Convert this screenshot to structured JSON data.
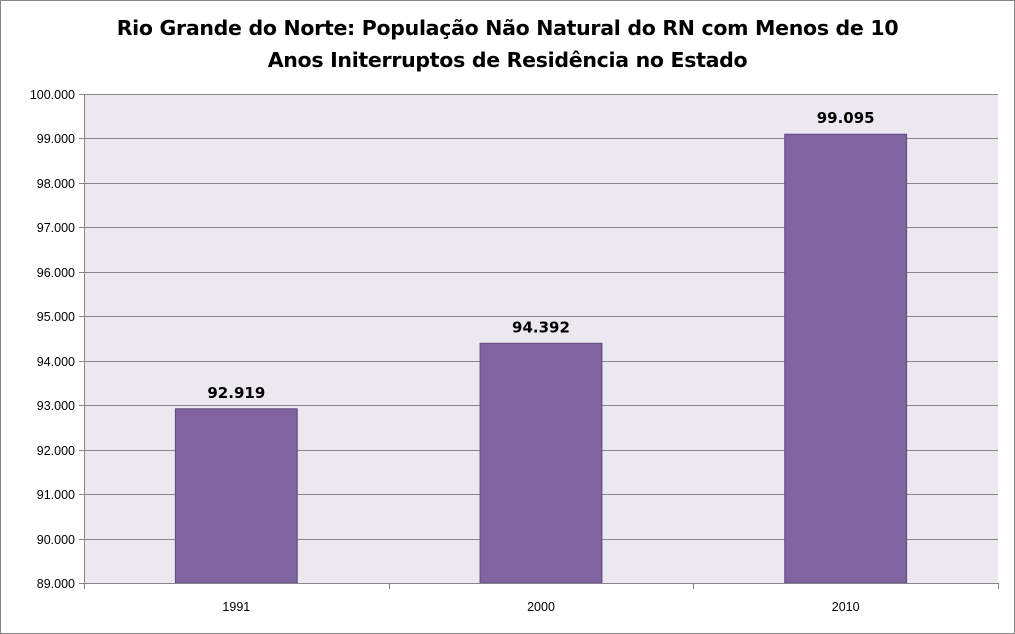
{
  "chart_data": {
    "type": "bar",
    "title_line1": "Rio Grande do Norte: População Não Natural do RN com Menos de 10",
    "title_line2": "Anos Initerruptos de Residência no Estado",
    "categories": [
      "1991",
      "2000",
      "2010"
    ],
    "values": [
      92919,
      94392,
      99095
    ],
    "data_labels": [
      "92.919",
      "94.392",
      "99.095"
    ],
    "ylim": [
      89000,
      100000
    ],
    "yticks": [
      89000,
      90000,
      91000,
      92000,
      93000,
      94000,
      95000,
      96000,
      97000,
      98000,
      99000,
      100000
    ],
    "ytick_labels": [
      "89.000",
      "90.000",
      "91.000",
      "92.000",
      "93.000",
      "94.000",
      "95.000",
      "96.000",
      "97.000",
      "98.000",
      "99.000",
      "100.000"
    ],
    "xlabel": "",
    "ylabel": "",
    "grid": true,
    "legend": "none",
    "colors": {
      "bar": "#8064A2",
      "bar_border": "#5E4A7D",
      "plot_background": "#EBE8F0",
      "gridline": "#868686"
    }
  }
}
